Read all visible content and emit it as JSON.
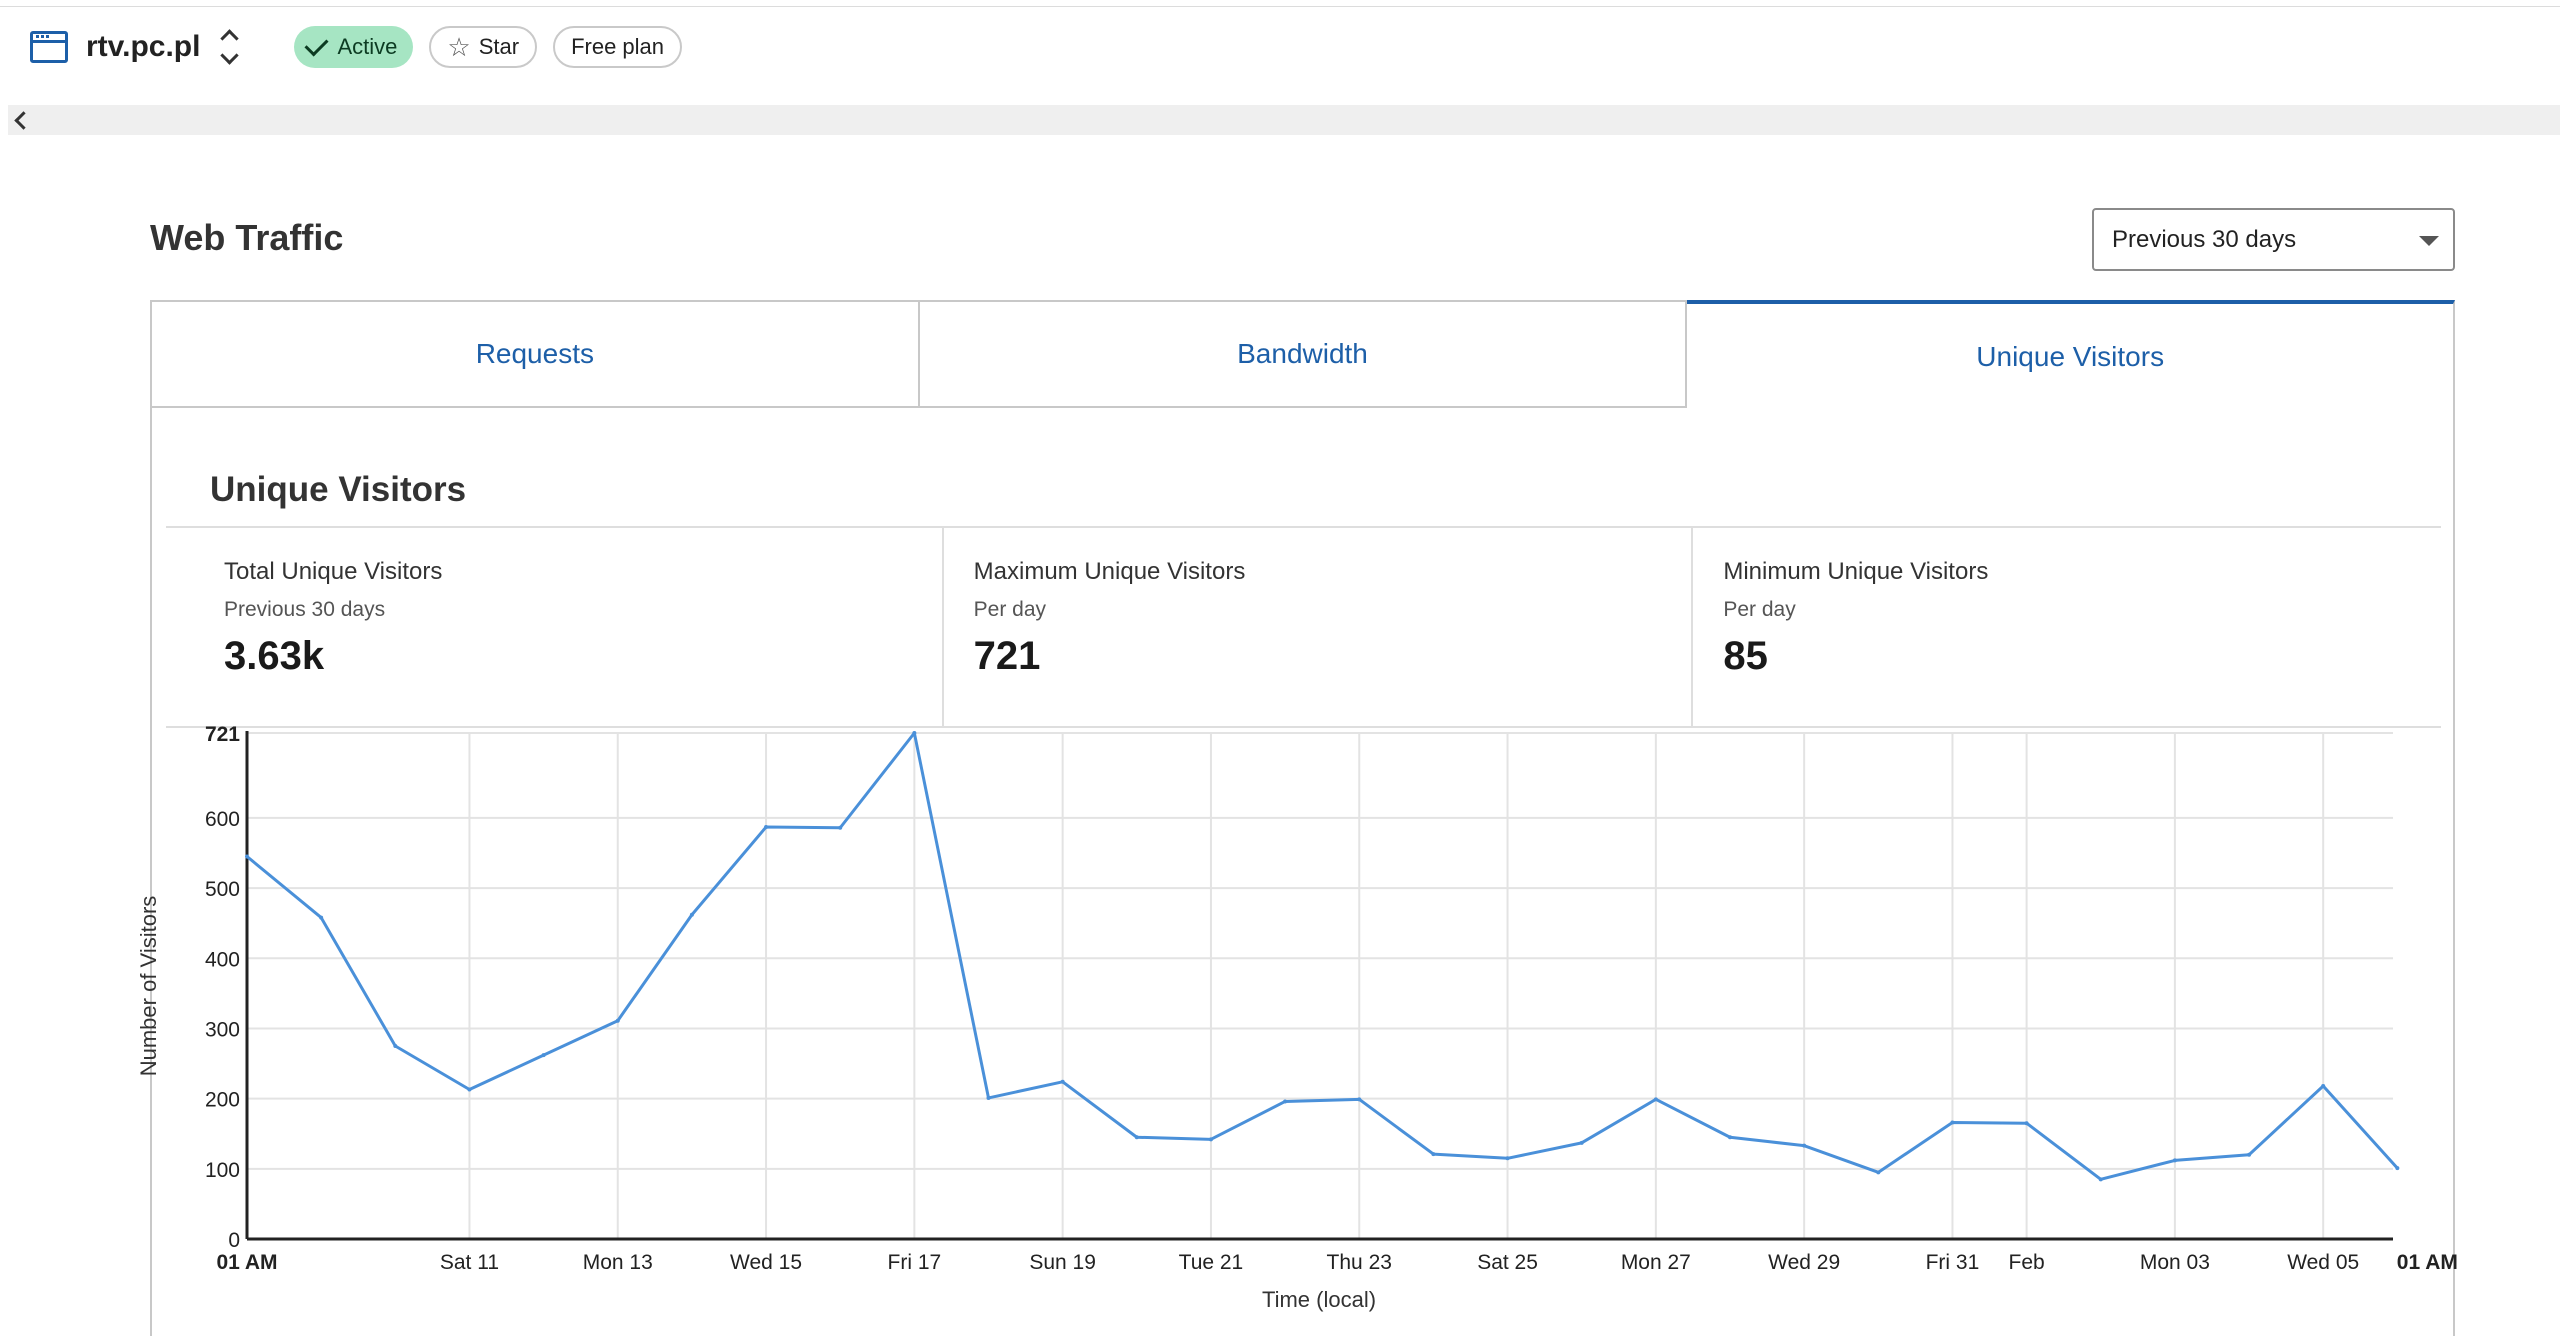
{
  "header": {
    "site_name": "rtv.pc.pl",
    "status_label": "Active",
    "star_label": "Star",
    "plan_label": "Free plan"
  },
  "section": {
    "title": "Web Traffic",
    "range_selected": "Previous 30 days"
  },
  "tabs": [
    {
      "label": "Requests",
      "selected": false
    },
    {
      "label": "Bandwidth",
      "selected": false
    },
    {
      "label": "Unique Visitors",
      "selected": true
    }
  ],
  "panel": {
    "title": "Unique Visitors",
    "stats": [
      {
        "label": "Total Unique Visitors",
        "sub": "Previous 30 days",
        "value": "3.63k"
      },
      {
        "label": "Maximum Unique Visitors",
        "sub": "Per day",
        "value": "721"
      },
      {
        "label": "Minimum Unique Visitors",
        "sub": "Per day",
        "value": "85"
      }
    ]
  },
  "colors": {
    "accent": "#1d5fa8",
    "line": "#4a90d9",
    "active_badge": "#a6e5c3"
  },
  "chart_data": {
    "type": "line",
    "xlabel": "Time (local)",
    "ylabel": "Number of Visitors",
    "ylim": [
      0,
      721
    ],
    "y_ticks": [
      0,
      100,
      200,
      300,
      400,
      500,
      600,
      721
    ],
    "x_ticks": [
      {
        "label": "01 AM",
        "bold": true,
        "pos": 0
      },
      {
        "label": "Sat 11",
        "bold": false,
        "pos": 3
      },
      {
        "label": "Mon 13",
        "bold": false,
        "pos": 5
      },
      {
        "label": "Wed 15",
        "bold": false,
        "pos": 7
      },
      {
        "label": "Fri 17",
        "bold": false,
        "pos": 9
      },
      {
        "label": "Sun 19",
        "bold": false,
        "pos": 11
      },
      {
        "label": "Tue 21",
        "bold": false,
        "pos": 13
      },
      {
        "label": "Thu 23",
        "bold": false,
        "pos": 15
      },
      {
        "label": "Sat 25",
        "bold": false,
        "pos": 17
      },
      {
        "label": "Mon 27",
        "bold": false,
        "pos": 19
      },
      {
        "label": "Wed 29",
        "bold": false,
        "pos": 21
      },
      {
        "label": "Fri 31",
        "bold": false,
        "pos": 23
      },
      {
        "label": "Feb",
        "bold": false,
        "pos": 24
      },
      {
        "label": "Mon 03",
        "bold": false,
        "pos": 26
      },
      {
        "label": "Wed 05",
        "bold": false,
        "pos": 28
      },
      {
        "label": "01 AM",
        "bold": true,
        "pos": 29
      }
    ],
    "series": [
      {
        "values": [
          545,
          458,
          275,
          213,
          262,
          311,
          462,
          587,
          586,
          721,
          201,
          224,
          145,
          142,
          196,
          199,
          121,
          115,
          137,
          199,
          145,
          133,
          95,
          166,
          165,
          85,
          112,
          120,
          218,
          101
        ]
      }
    ],
    "grid": true
  }
}
